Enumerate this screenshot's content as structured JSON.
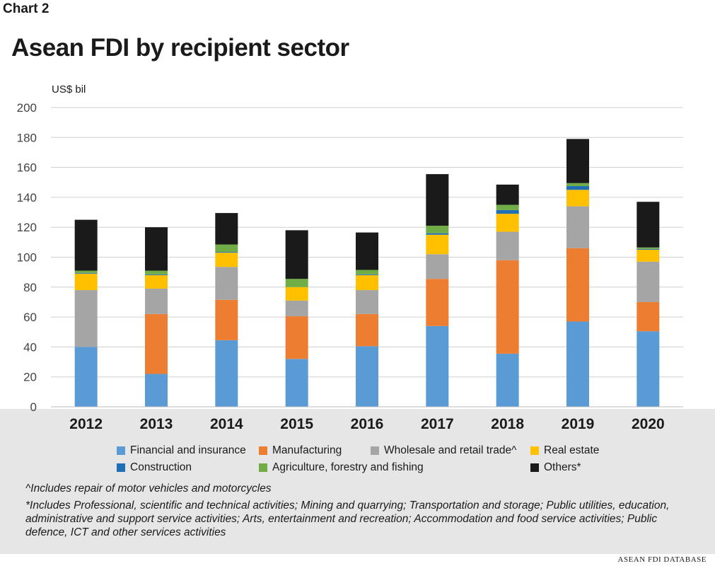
{
  "header": {
    "chart_label": "Chart 2",
    "title": "Asean FDI by recipient sector"
  },
  "footnotes": {
    "note1": "^Includes repair of motor vehicles and motorcycles",
    "note2": "*Includes Professional, scientific and technical activities; Mining and quarrying; Transportation and storage; Public utilities, education, administrative and support service activities; Arts, entertainment and recreation; Accommodation and food service activities; Public defence, ICT and other services activities"
  },
  "source": "ASEAN FDI DATABASE",
  "chart_data": {
    "type": "bar",
    "stacked": true,
    "categories": [
      "2012",
      "2013",
      "2014",
      "2015",
      "2016",
      "2017",
      "2018",
      "2019",
      "2020"
    ],
    "ylabel": "US$ bil",
    "ylim": [
      0,
      200
    ],
    "yticks": [
      0,
      20,
      40,
      60,
      80,
      100,
      120,
      140,
      160,
      180,
      200
    ],
    "grid": true,
    "legend_position": "bottom",
    "series": [
      {
        "name": "Financial and  insurance",
        "color": "#5b9bd5",
        "values": [
          40,
          22,
          44.5,
          32,
          40.5,
          54,
          35.5,
          57,
          50.5
        ]
      },
      {
        "name": "Manufacturing",
        "color": "#ed7d31",
        "values": [
          0,
          40,
          27,
          28.5,
          21.5,
          31.5,
          62.5,
          49,
          19.5
        ]
      },
      {
        "name": "Wholesale and retail trade^",
        "color": "#a5a5a5",
        "values": [
          38,
          17,
          22,
          10.5,
          16,
          16.5,
          19,
          28,
          27
        ]
      },
      {
        "name": "Real estate",
        "color": "#ffc000",
        "values": [
          11,
          9,
          9.5,
          9,
          10,
          13,
          12,
          11,
          8
        ]
      },
      {
        "name": "Construction",
        "color": "#1f6fb5",
        "values": [
          0.5,
          0.5,
          0.5,
          0,
          0.5,
          1,
          2.5,
          2.5,
          0.5
        ]
      },
      {
        "name": "Agriculture, forestry and fishing",
        "color": "#70ad47",
        "values": [
          1.5,
          2.5,
          5,
          5.5,
          3,
          5,
          3.5,
          2,
          1
        ]
      },
      {
        "name": "Others*",
        "color": "#1a1a1a",
        "values": [
          34,
          29,
          21,
          32.5,
          25,
          34.5,
          13.5,
          29.5,
          30.5
        ]
      }
    ]
  }
}
